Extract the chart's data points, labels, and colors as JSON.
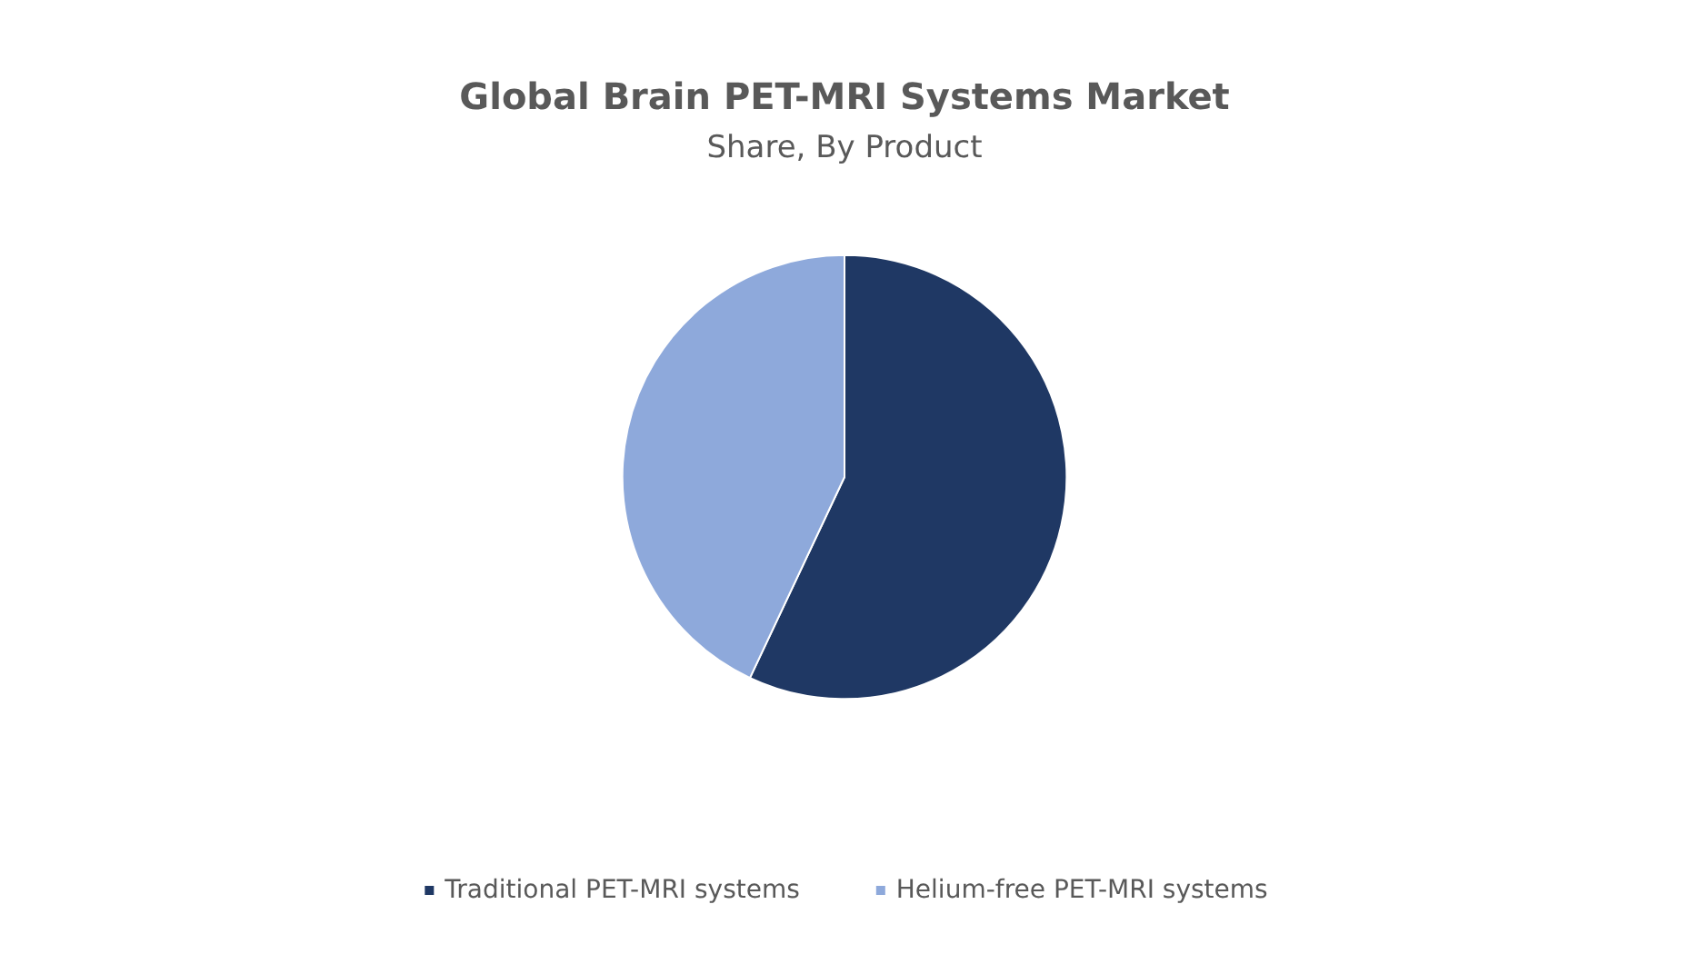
{
  "chart_data": {
    "type": "pie",
    "title": "Global Brain PET-MRI Systems Market",
    "subtitle": "Share, By Product",
    "categories": [
      "Traditional PET-MRI systems",
      "Helium-free PET-MRI systems"
    ],
    "values": [
      57,
      43
    ],
    "colors": [
      "#1f3864",
      "#8ea9db"
    ],
    "legend": "bottom"
  }
}
